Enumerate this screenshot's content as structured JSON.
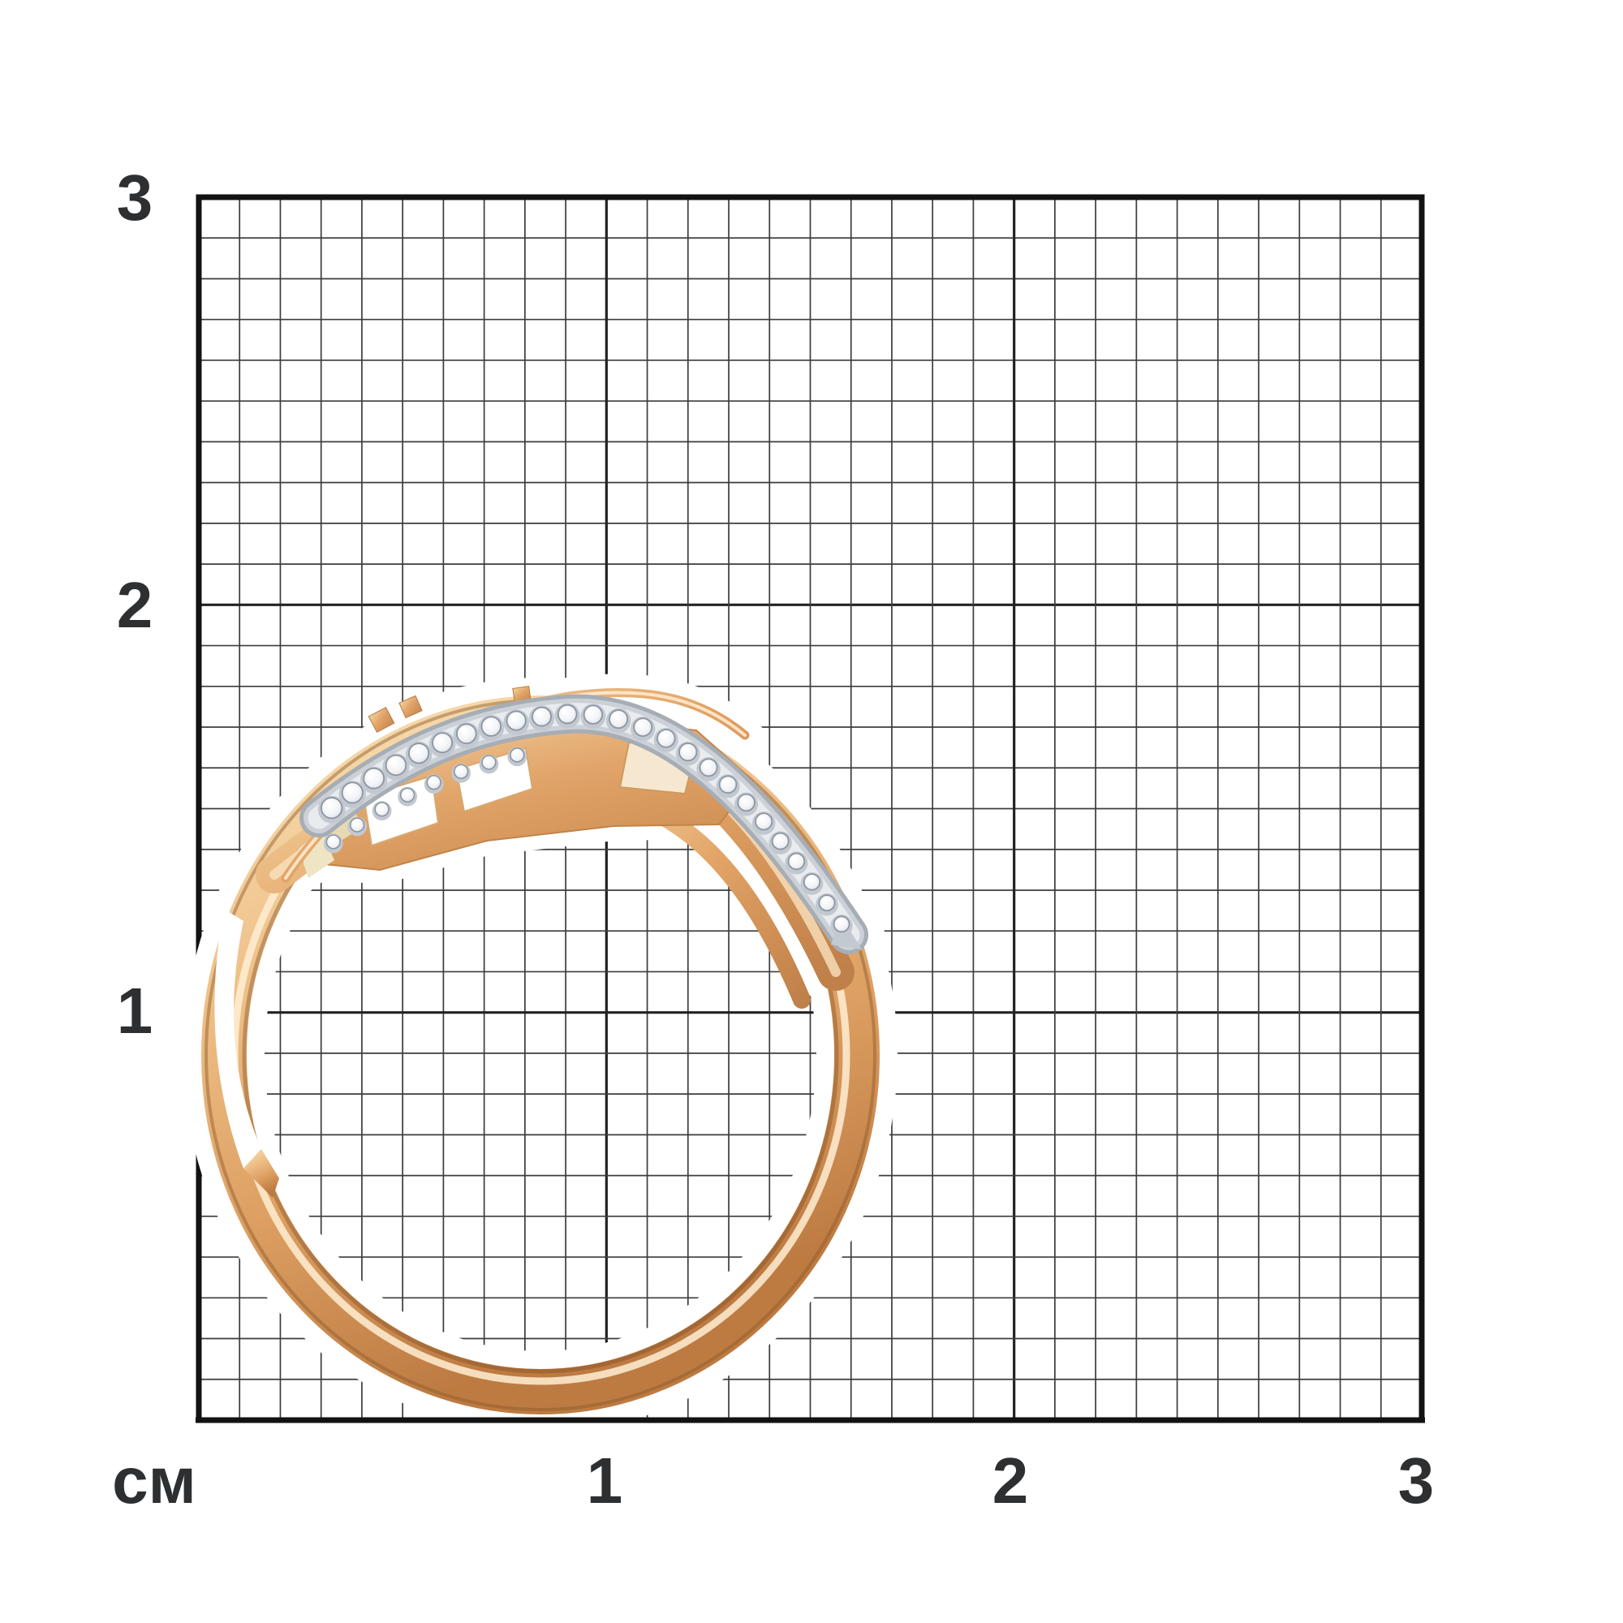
{
  "page": {
    "background": "#ffffff",
    "content_kind": "jewelry product photo on centimeter measurement grid"
  },
  "ruler": {
    "unit_label": "см",
    "left_labels": [
      "3",
      "2",
      "1"
    ],
    "bottom_labels": [
      "1",
      "2",
      "3"
    ],
    "cm_count": 3,
    "minor_cells": 30,
    "major_every": 10,
    "colors": {
      "border": "#121212",
      "major": "#222222",
      "minor": "#3c3c3c",
      "label": "#2d2f31"
    }
  },
  "object": {
    "kind": "rose-gold ring with diagonal diamond pave strip, side view",
    "gold_light": "#f8e0b6",
    "gold_mid": "#e2a365",
    "gold_dark": "#bd7b42",
    "gold_seam": "#7e4f26",
    "silver_light": "#e9ecef",
    "silver_mid": "#ccd1d7",
    "silver_dark": "#a6adb5",
    "diamond_outline": "#8d95a0",
    "diamond_setting": "#c2c8d0",
    "diamond_count_main": 25,
    "diamond_count_inner_row": 8,
    "halo_color": "#ffffff"
  }
}
